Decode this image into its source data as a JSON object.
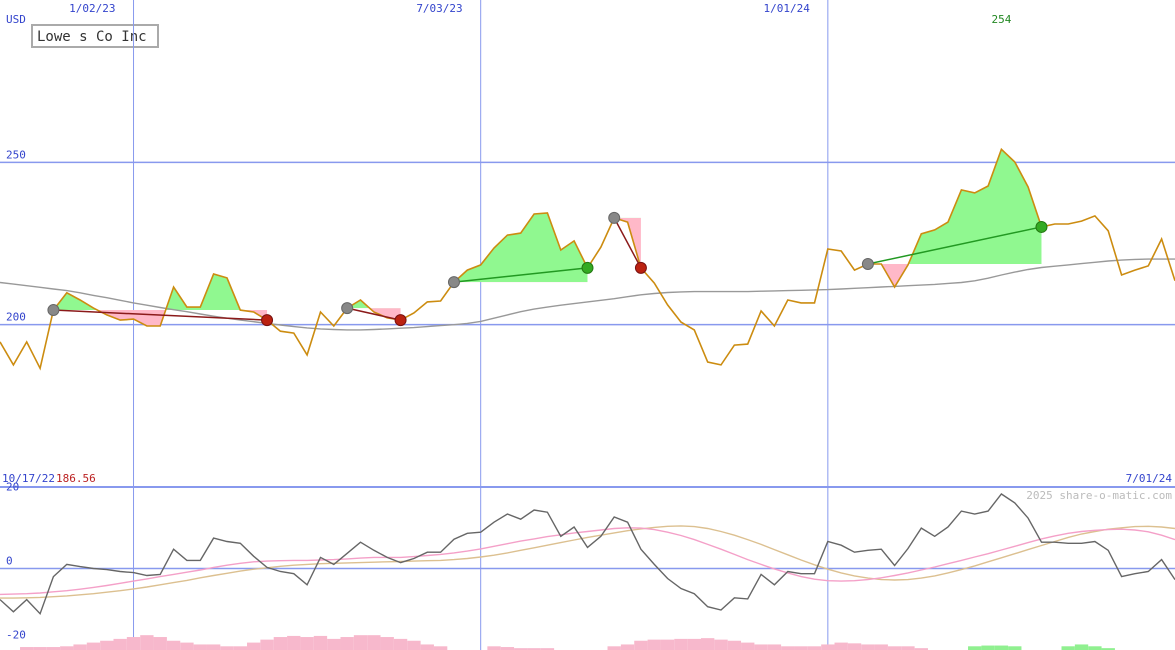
{
  "chart_data": [
    {
      "type": "line",
      "title": "Lowe s Co Inc",
      "unit": "USD",
      "start_date": "10/17/22",
      "end_date": "7/01/24",
      "xlim": [
        0,
        88
      ],
      "xticks": [
        {
          "value": 10,
          "label": "1/02/23"
        },
        {
          "value": 36,
          "label": "7/03/23"
        },
        {
          "value": 62,
          "label": "1/01/24"
        }
      ],
      "ylim": [
        150,
        300
      ],
      "yticks": [
        200,
        250
      ],
      "grid": true,
      "grid_color": "#8899ee",
      "series": [
        {
          "color": "#cc8c10",
          "values": [
            194.7,
            187.6,
            194.7,
            186.56,
            204.5,
            209.8,
            207.6,
            205.1,
            203,
            201.4,
            201.7,
            199.6,
            199.6,
            211.6,
            205.4,
            205.4,
            215.6,
            214.4,
            204.5,
            203.9,
            201.4,
            198,
            197.4,
            190.7,
            203.9,
            199.6,
            205.1,
            207.6,
            203.9,
            202.1,
            201.4,
            203.6,
            207,
            207.3,
            213.1,
            216.8,
            218.4,
            223.6,
            227.6,
            228.2,
            234.1,
            234.4,
            223,
            225.8,
            217.5,
            223.9,
            232.9,
            231.6,
            217.5,
            212.8,
            206.1,
            200.8,
            198.4,
            188.5,
            187.6,
            193.7,
            194,
            204.2,
            199.6,
            207.6,
            206.7,
            206.7,
            223.3,
            222.7,
            216.8,
            218.7,
            218.7,
            211.6,
            218.4,
            228,
            229.2,
            231.6,
            241.5,
            240.6,
            242.7,
            254,
            250.1,
            242.4,
            230.1,
            231,
            231,
            231.9,
            233.5,
            228.9,
            215.3,
            216.8,
            218.1,
            226.4,
            213.5
          ]
        },
        {
          "color": "#999999",
          "values": [
            213,
            212.5,
            212,
            211.5,
            211,
            210.5,
            209.8,
            209,
            208.3,
            207.5,
            206.7,
            206,
            205.3,
            204.6,
            204,
            203.3,
            202.6,
            202,
            201.4,
            200.9,
            200.4,
            199.9,
            199.4,
            199,
            198.7,
            198.5,
            198.4,
            198.4,
            198.5,
            198.7,
            198.9,
            199.1,
            199.4,
            199.7,
            200,
            200.4,
            201,
            202,
            203,
            204,
            204.8,
            205.4,
            206,
            206.5,
            207,
            207.5,
            208,
            208.6,
            209.2,
            209.6,
            209.9,
            210.1,
            210.2,
            210.2,
            210.2,
            210.2,
            210.2,
            210.3,
            210.4,
            210.5,
            210.6,
            210.7,
            210.8,
            211,
            211.2,
            211.4,
            211.6,
            211.8,
            212,
            212.2,
            212.4,
            212.7,
            213,
            213.5,
            214.3,
            215.3,
            216.2,
            217,
            217.6,
            218,
            218.4,
            218.8,
            219.2,
            219.6,
            219.9,
            220.1,
            220.2,
            220.2,
            220.2
          ]
        }
      ],
      "signals": [
        {
          "from": 4,
          "to": 20
        },
        {
          "from": 26,
          "to": 30
        },
        {
          "from": 34,
          "to": 44
        },
        {
          "from": 46,
          "to": 48
        },
        {
          "from": 65,
          "to": 78
        }
      ]
    },
    {
      "type": "line",
      "watermark": "2025 share-o-matic.com",
      "xlim": [
        0,
        88
      ],
      "ylim": [
        -22,
        22
      ],
      "yticks": [
        -20,
        0,
        20
      ],
      "series": [
        {
          "color": "#666666",
          "values": [
            -8.4,
            -11.7,
            -8.4,
            -12.2,
            -2.2,
            1.1,
            0.5,
            0,
            -0.3,
            -0.8,
            -1.1,
            -1.9,
            -1.6,
            5.2,
            2.2,
            2.2,
            8.2,
            7.3,
            6.8,
            3.3,
            0.3,
            -0.8,
            -1.4,
            -4.4,
            3,
            1.1,
            4.1,
            7.1,
            4.9,
            3,
            1.6,
            2.7,
            4.4,
            4.4,
            7.9,
            9.5,
            9.8,
            12.5,
            14.7,
            13.3,
            15.8,
            15.2,
            8.7,
            11.2,
            5.7,
            8.7,
            13.9,
            12.5,
            5.2,
            1.1,
            -2.7,
            -5.4,
            -6.8,
            -10.3,
            -11.2,
            -7.9,
            -8.2,
            -1.6,
            -4.4,
            -0.8,
            -1.4,
            -1.4,
            7.3,
            6.3,
            4.4,
            4.9,
            5.2,
            0.8,
            5.4,
            10.9,
            8.7,
            11.2,
            15.5,
            14.7,
            15.5,
            20.1,
            17.7,
            13.6,
            7.1,
            7.1,
            6.8,
            6.8,
            7.3,
            4.9,
            -2.2,
            -1.4,
            -0.8,
            2.4,
            -3
          ]
        },
        {
          "color": "#f4a0c8",
          "values": [
            -7,
            -6.9,
            -6.8,
            -6.6,
            -6.3,
            -6,
            -5.6,
            -5.1,
            -4.6,
            -4,
            -3.4,
            -2.8,
            -2.2,
            -1.6,
            -1,
            -0.4,
            0.3,
            0.9,
            1.4,
            1.8,
            2,
            2.1,
            2.2,
            2.2,
            2.3,
            2.4,
            2.6,
            2.8,
            3,
            3,
            3,
            3.2,
            3.5,
            3.8,
            4.2,
            4.7,
            5.3,
            6,
            6.7,
            7.4,
            8,
            8.6,
            9.1,
            9.6,
            10,
            10.4,
            10.8,
            11,
            10.9,
            10.5,
            9.8,
            8.9,
            7.8,
            6.5,
            5.2,
            3.8,
            2.4,
            1.1,
            -0.1,
            -1.2,
            -2.2,
            -2.9,
            -3.3,
            -3.4,
            -3.3,
            -3,
            -2.5,
            -1.9,
            -1.2,
            -0.4,
            0.4,
            1.3,
            2.2,
            3.1,
            4,
            5,
            6,
            7,
            8,
            8.8,
            9.5,
            10,
            10.3,
            10.5,
            10.6,
            10.4,
            9.9,
            9,
            7.8
          ]
        },
        {
          "color": "#dcc090",
          "values": [
            -8,
            -8,
            -7.9,
            -7.8,
            -7.6,
            -7.4,
            -7.1,
            -6.8,
            -6.4,
            -6,
            -5.5,
            -5,
            -4.4,
            -3.8,
            -3.2,
            -2.5,
            -1.9,
            -1.3,
            -0.7,
            -0.2,
            0.2,
            0.6,
            0.9,
            1.1,
            1.3,
            1.4,
            1.5,
            1.6,
            1.7,
            1.8,
            1.9,
            2,
            2.1,
            2.2,
            2.4,
            2.7,
            3.1,
            3.6,
            4.2,
            4.9,
            5.6,
            6.3,
            7,
            7.7,
            8.4,
            9,
            9.6,
            10.2,
            10.7,
            11.1,
            11.4,
            11.5,
            11.3,
            10.8,
            10,
            9,
            7.8,
            6.5,
            5.1,
            3.7,
            2.3,
            1,
            -0.2,
            -1.2,
            -2,
            -2.6,
            -3,
            -3.1,
            -3,
            -2.6,
            -2,
            -1.2,
            -0.3,
            0.7,
            1.8,
            2.9,
            4,
            5.1,
            6.2,
            7.3,
            8.4,
            9.3,
            10,
            10.6,
            11,
            11.3,
            11.4,
            11.2,
            10.8
          ]
        }
      ],
      "histogram": {
        "colors": [
          "#f7b8cc",
          "#90f090"
        ],
        "values": [
          0,
          0,
          -0.8,
          -0.8,
          -0.8,
          -1,
          -1.5,
          -2,
          -2.5,
          -3,
          -3.5,
          -4,
          -3.5,
          -2.5,
          -2,
          -1.5,
          -1.5,
          -1,
          -1,
          -2,
          -2.8,
          -3.5,
          -3.8,
          -3.5,
          -3.8,
          -3,
          -3.5,
          -4,
          -4,
          -3.5,
          -3,
          -2.5,
          -1.5,
          -1,
          0,
          0,
          0,
          -1,
          -0.8,
          -0.5,
          -0.5,
          -0.5,
          0,
          0,
          0,
          0,
          -1,
          -1.5,
          -2.5,
          -2.8,
          -2.8,
          -3,
          -3,
          -3.2,
          -2.8,
          -2.5,
          -2,
          -1.5,
          -1.5,
          -1,
          -1,
          -1,
          -1.5,
          -2,
          -1.8,
          -1.5,
          -1.5,
          -1,
          -1,
          -0.5,
          0,
          0,
          0,
          1,
          1.2,
          1.2,
          1,
          0,
          0,
          0,
          1,
          1.5,
          1,
          0.5,
          0,
          0,
          0,
          0,
          0
        ]
      }
    }
  ]
}
